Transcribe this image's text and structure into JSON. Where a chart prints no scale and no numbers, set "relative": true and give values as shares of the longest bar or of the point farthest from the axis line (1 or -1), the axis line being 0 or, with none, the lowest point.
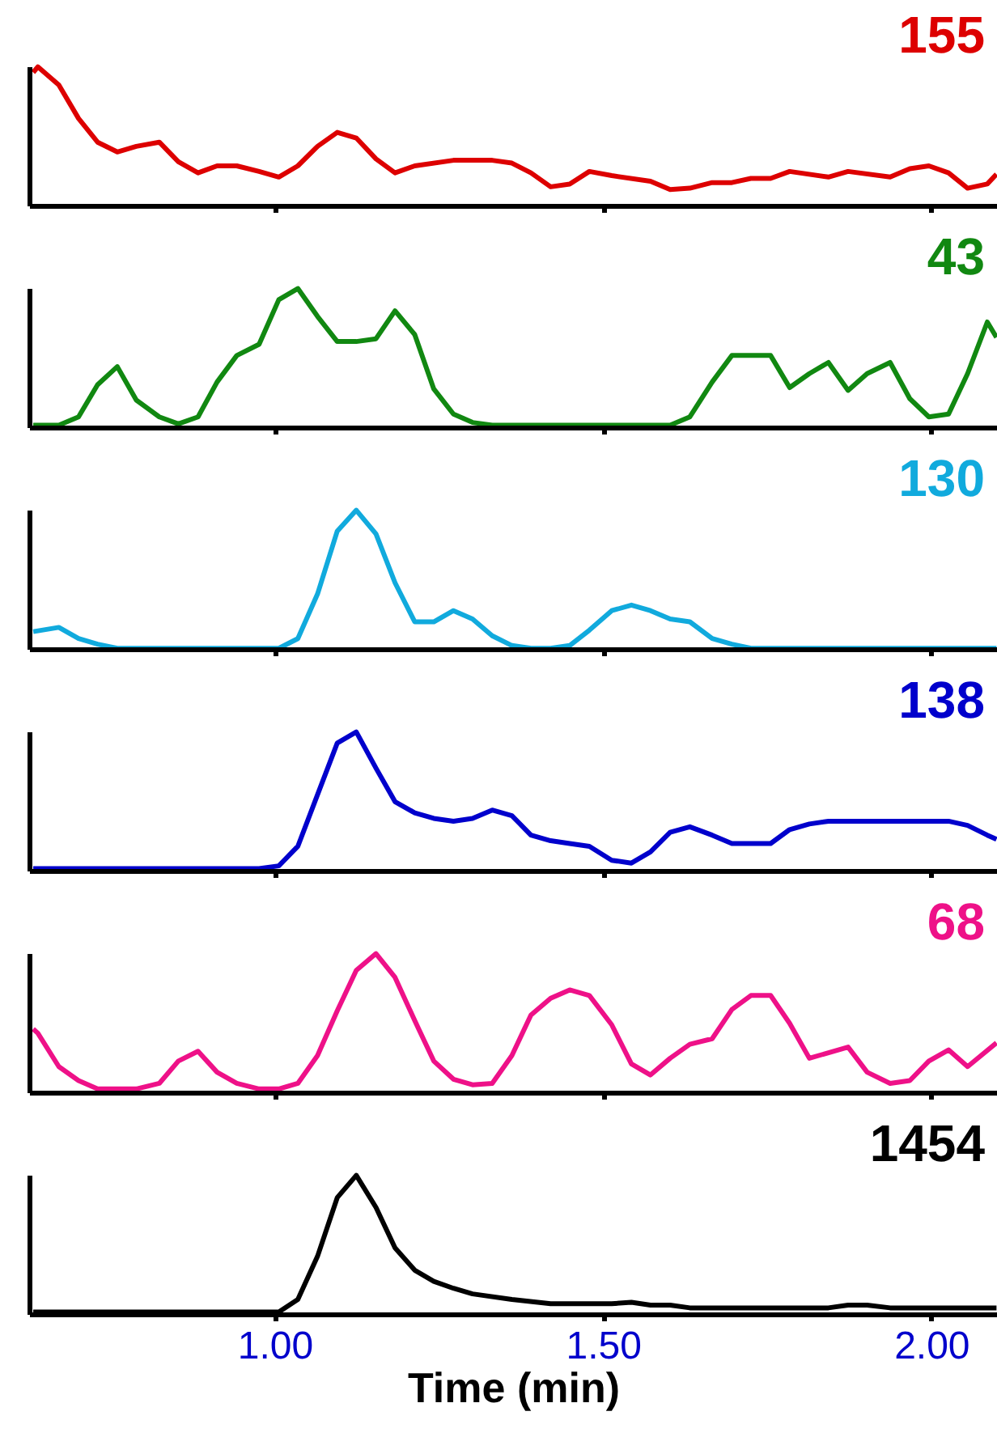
{
  "chart_data": [
    {
      "type": "line",
      "relative": true,
      "tick_labels": false,
      "xlim": [
        0.626,
        2.1
      ],
      "xticks": [
        {
          "value": 1.0,
          "label": null
        },
        {
          "value": 1.5,
          "label": null
        },
        {
          "value": 2.0,
          "label": null
        }
      ],
      "x": [
        0.631,
        0.638,
        0.67,
        0.7,
        0.729,
        0.759,
        0.788,
        0.823,
        0.852,
        0.882,
        0.911,
        0.941,
        0.975,
        1.005,
        1.034,
        1.064,
        1.094,
        1.123,
        1.153,
        1.182,
        1.212,
        1.271,
        1.33,
        1.36,
        1.389,
        1.419,
        1.448,
        1.478,
        1.512,
        1.571,
        1.601,
        1.631,
        1.665,
        1.695,
        1.724,
        1.754,
        1.783,
        1.842,
        1.872,
        1.936,
        1.966,
        1.995,
        2.025,
        2.054,
        2.084,
        2.098
      ],
      "series": [
        {
          "name": "155",
          "color": "#dd0000",
          "values": [
            0.96,
            1.0,
            0.87,
            0.63,
            0.46,
            0.39,
            0.43,
            0.46,
            0.32,
            0.24,
            0.29,
            0.29,
            0.25,
            0.21,
            0.29,
            0.43,
            0.53,
            0.49,
            0.34,
            0.24,
            0.29,
            0.33,
            0.33,
            0.31,
            0.24,
            0.14,
            0.16,
            0.25,
            0.22,
            0.18,
            0.12,
            0.13,
            0.17,
            0.17,
            0.2,
            0.2,
            0.25,
            0.21,
            0.25,
            0.21,
            0.27,
            0.29,
            0.24,
            0.13,
            0.16,
            0.23
          ]
        }
      ]
    },
    {
      "type": "line",
      "relative": true,
      "tick_labels": false,
      "xlim": [
        0.626,
        2.1
      ],
      "xticks": [
        {
          "value": 1.0,
          "label": null
        },
        {
          "value": 1.5,
          "label": null
        },
        {
          "value": 2.0,
          "label": null
        }
      ],
      "x": [
        0.631,
        0.67,
        0.7,
        0.729,
        0.759,
        0.788,
        0.823,
        0.852,
        0.882,
        0.911,
        0.941,
        0.975,
        1.005,
        1.034,
        1.064,
        1.094,
        1.123,
        1.153,
        1.182,
        1.212,
        1.241,
        1.271,
        1.3,
        1.33,
        1.601,
        1.631,
        1.665,
        1.695,
        1.754,
        1.783,
        1.813,
        1.842,
        1.872,
        1.901,
        1.936,
        1.966,
        1.995,
        2.025,
        2.054,
        2.084,
        2.098
      ],
      "series": [
        {
          "name": "43",
          "color": "#118811",
          "values": [
            0.02,
            0.02,
            0.08,
            0.31,
            0.44,
            0.2,
            0.08,
            0.03,
            0.08,
            0.33,
            0.52,
            0.6,
            0.92,
            1.0,
            0.8,
            0.62,
            0.62,
            0.64,
            0.84,
            0.67,
            0.28,
            0.1,
            0.04,
            0.02,
            0.02,
            0.08,
            0.33,
            0.52,
            0.52,
            0.29,
            0.39,
            0.47,
            0.27,
            0.39,
            0.47,
            0.21,
            0.08,
            0.1,
            0.39,
            0.76,
            0.65
          ]
        }
      ]
    },
    {
      "type": "line",
      "relative": true,
      "tick_labels": false,
      "xlim": [
        0.626,
        2.1
      ],
      "xticks": [
        {
          "value": 1.0,
          "label": null
        },
        {
          "value": 1.5,
          "label": null
        },
        {
          "value": 2.0,
          "label": null
        }
      ],
      "x": [
        0.631,
        0.67,
        0.7,
        0.729,
        0.759,
        1.005,
        1.034,
        1.064,
        1.094,
        1.123,
        1.153,
        1.182,
        1.212,
        1.241,
        1.271,
        1.3,
        1.33,
        1.36,
        1.389,
        1.419,
        1.448,
        1.478,
        1.512,
        1.542,
        1.571,
        1.601,
        1.631,
        1.665,
        1.695,
        1.724,
        2.098
      ],
      "series": [
        {
          "name": "130",
          "color": "#11aadd",
          "values": [
            0.13,
            0.16,
            0.08,
            0.04,
            0.01,
            0.01,
            0.08,
            0.4,
            0.85,
            1.0,
            0.83,
            0.48,
            0.2,
            0.2,
            0.28,
            0.22,
            0.1,
            0.03,
            0.01,
            0.01,
            0.03,
            0.14,
            0.28,
            0.32,
            0.28,
            0.22,
            0.2,
            0.08,
            0.04,
            0.01,
            0.01
          ]
        }
      ]
    },
    {
      "type": "line",
      "relative": true,
      "tick_labels": false,
      "xlim": [
        0.626,
        2.1
      ],
      "xticks": [
        {
          "value": 1.0,
          "label": null
        },
        {
          "value": 1.5,
          "label": null
        },
        {
          "value": 2.0,
          "label": null
        }
      ],
      "x": [
        0.631,
        0.975,
        1.005,
        1.034,
        1.064,
        1.094,
        1.123,
        1.153,
        1.182,
        1.212,
        1.241,
        1.271,
        1.3,
        1.33,
        1.36,
        1.389,
        1.419,
        1.448,
        1.478,
        1.512,
        1.542,
        1.571,
        1.601,
        1.631,
        1.665,
        1.695,
        1.754,
        1.783,
        1.813,
        1.842,
        2.025,
        2.054,
        2.084,
        2.098
      ],
      "series": [
        {
          "name": "138",
          "color": "#0000cc",
          "values": [
            0.02,
            0.02,
            0.04,
            0.18,
            0.55,
            0.92,
            1.0,
            0.74,
            0.5,
            0.42,
            0.38,
            0.36,
            0.38,
            0.44,
            0.4,
            0.26,
            0.22,
            0.2,
            0.18,
            0.08,
            0.06,
            0.14,
            0.28,
            0.32,
            0.26,
            0.2,
            0.2,
            0.3,
            0.34,
            0.36,
            0.36,
            0.33,
            0.26,
            0.23
          ]
        }
      ]
    },
    {
      "type": "line",
      "relative": true,
      "tick_labels": false,
      "xlim": [
        0.626,
        2.1
      ],
      "xticks": [
        {
          "value": 1.0,
          "label": null
        },
        {
          "value": 1.5,
          "label": null
        },
        {
          "value": 2.0,
          "label": null
        }
      ],
      "x": [
        0.631,
        0.638,
        0.67,
        0.7,
        0.729,
        0.788,
        0.823,
        0.852,
        0.882,
        0.911,
        0.941,
        0.975,
        1.005,
        1.034,
        1.064,
        1.094,
        1.123,
        1.153,
        1.182,
        1.212,
        1.241,
        1.271,
        1.3,
        1.33,
        1.36,
        1.389,
        1.419,
        1.448,
        1.478,
        1.512,
        1.542,
        1.571,
        1.601,
        1.631,
        1.665,
        1.695,
        1.724,
        1.754,
        1.783,
        1.813,
        1.872,
        1.901,
        1.936,
        1.966,
        1.995,
        2.025,
        2.054,
        2.098
      ],
      "series": [
        {
          "name": "68",
          "color": "#ee1188",
          "values": [
            0.46,
            0.43,
            0.19,
            0.09,
            0.03,
            0.03,
            0.07,
            0.23,
            0.3,
            0.15,
            0.07,
            0.03,
            0.03,
            0.07,
            0.27,
            0.59,
            0.88,
            1.0,
            0.83,
            0.52,
            0.23,
            0.1,
            0.06,
            0.07,
            0.27,
            0.56,
            0.68,
            0.74,
            0.7,
            0.49,
            0.21,
            0.13,
            0.25,
            0.35,
            0.39,
            0.6,
            0.7,
            0.7,
            0.5,
            0.25,
            0.33,
            0.15,
            0.07,
            0.09,
            0.23,
            0.31,
            0.19,
            0.36
          ]
        }
      ]
    },
    {
      "type": "line",
      "relative": true,
      "tick_labels": "x",
      "xlabel": "Time (min)",
      "xlim": [
        0.626,
        2.1
      ],
      "xticks": [
        {
          "value": 1.0,
          "label": "1.00"
        },
        {
          "value": 1.5,
          "label": "1.50"
        },
        {
          "value": 2.0,
          "label": "2.00"
        }
      ],
      "x": [
        0.631,
        1.005,
        1.034,
        1.064,
        1.094,
        1.123,
        1.153,
        1.182,
        1.212,
        1.241,
        1.271,
        1.3,
        1.36,
        1.419,
        1.512,
        1.542,
        1.571,
        1.601,
        1.631,
        1.842,
        1.872,
        1.901,
        1.936,
        2.098
      ],
      "series": [
        {
          "name": "1454",
          "color": "#000000",
          "values": [
            0.02,
            0.02,
            0.11,
            0.42,
            0.84,
            1.0,
            0.77,
            0.48,
            0.32,
            0.24,
            0.19,
            0.15,
            0.11,
            0.08,
            0.08,
            0.09,
            0.07,
            0.07,
            0.05,
            0.05,
            0.07,
            0.07,
            0.05,
            0.05
          ]
        }
      ]
    }
  ]
}
